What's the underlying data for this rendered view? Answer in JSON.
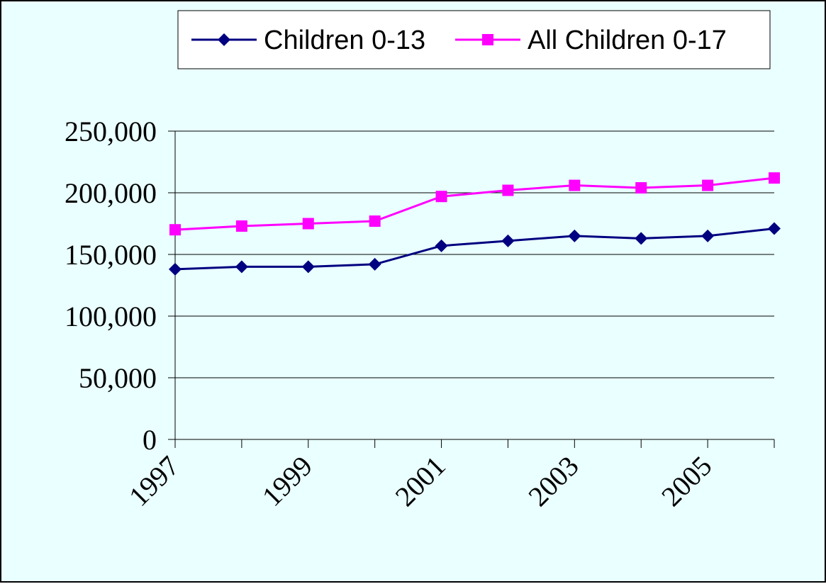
{
  "chart_data": {
    "type": "line",
    "categories": [
      "1997",
      "1998",
      "1999",
      "2000",
      "2001",
      "2002",
      "2003",
      "2004",
      "2005",
      "2006"
    ],
    "x_tick_labels": [
      "1997",
      "",
      "1999",
      "",
      "2001",
      "",
      "2003",
      "",
      "2005",
      ""
    ],
    "series": [
      {
        "name": "Children 0-13",
        "color": "#000080",
        "marker": "diamond",
        "values": [
          138000,
          140000,
          140000,
          142000,
          157000,
          161000,
          165000,
          163000,
          165000,
          171000
        ]
      },
      {
        "name": "All Children 0-17",
        "color": "#ff00ff",
        "marker": "square",
        "values": [
          170000,
          173000,
          175000,
          177000,
          197000,
          202000,
          206000,
          204000,
          206000,
          212000
        ]
      }
    ],
    "y_tick_labels": [
      "0",
      "50,000",
      "100,000",
      "150,000",
      "200,000",
      "250,000"
    ],
    "y_ticks": [
      0,
      50000,
      100000,
      150000,
      200000,
      250000
    ],
    "ylim": [
      0,
      250000
    ],
    "grid": "horizontal",
    "legend_position": "top-right",
    "background_color": "#eaffff"
  }
}
